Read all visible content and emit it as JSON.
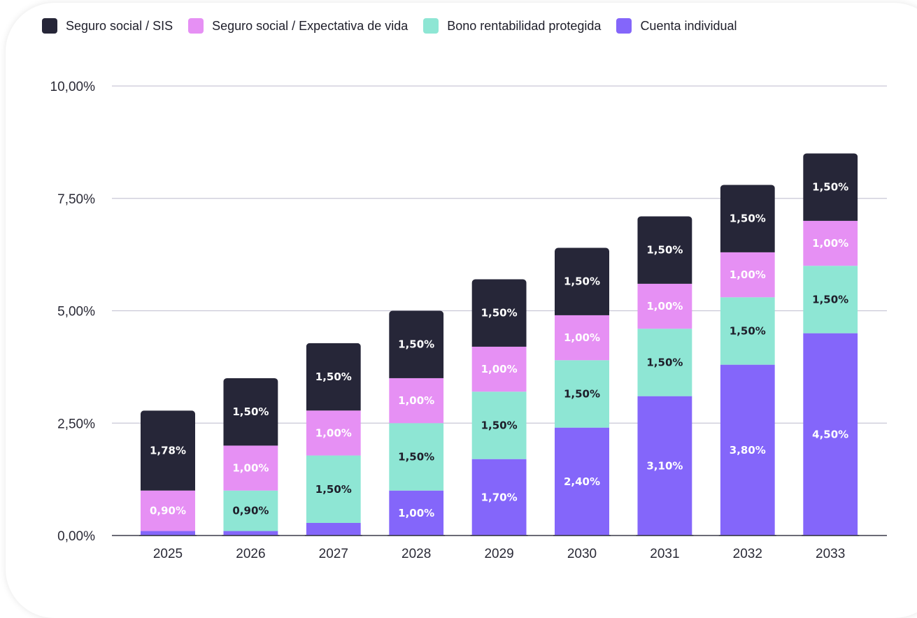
{
  "legend": {
    "items": [
      {
        "label": "Seguro social / SIS",
        "color": "#262638"
      },
      {
        "label": "Seguro social / Expectativa de vida",
        "color": "#e690f4"
      },
      {
        "label": "Bono rentabilidad protegida",
        "color": "#8ee6d4"
      },
      {
        "label": "Cuenta individual",
        "color": "#8466fa"
      }
    ]
  },
  "chart_data": {
    "type": "bar",
    "stacked": true,
    "legend_position": "top",
    "grid": true,
    "ylim": [
      0,
      10
    ],
    "yticks": [
      0,
      2.5,
      5,
      7.5,
      10
    ],
    "ytick_labels": [
      "0,00%",
      "2,50%",
      "5,00%",
      "7,50%",
      "10,00%"
    ],
    "categories": [
      "2025",
      "2026",
      "2027",
      "2028",
      "2029",
      "2030",
      "2031",
      "2032",
      "2033"
    ],
    "series": [
      {
        "name": "Cuenta individual",
        "color": "#8466fa",
        "values": [
          0.1,
          0.1,
          0.28,
          1.0,
          1.7,
          2.4,
          3.1,
          3.8,
          4.5
        ],
        "labels": [
          "",
          "",
          "",
          "1,00%",
          "1,70%",
          "2,40%",
          "3,10%",
          "3,80%",
          "4,50%"
        ],
        "label_color": "#ffffff"
      },
      {
        "name": "Bono rentabilidad protegida",
        "color": "#8ee6d4",
        "values": [
          0,
          0.9,
          1.5,
          1.5,
          1.5,
          1.5,
          1.5,
          1.5,
          1.5
        ],
        "labels": [
          "",
          "0,90%",
          "1,50%",
          "1,50%",
          "1,50%",
          "1,50%",
          "1,50%",
          "1,50%",
          "1,50%"
        ],
        "label_color": "#1e1e2a"
      },
      {
        "name": "Seguro social / Expectativa de vida",
        "color": "#e690f4",
        "values": [
          0.9,
          1.0,
          1.0,
          1.0,
          1.0,
          1.0,
          1.0,
          1.0,
          1.0
        ],
        "labels": [
          "0,90%",
          "1,00%",
          "1,00%",
          "1,00%",
          "1,00%",
          "1,00%",
          "1,00%",
          "1,00%",
          "1,00%"
        ],
        "label_color": "#ffffff"
      },
      {
        "name": "Seguro social / SIS",
        "color": "#262638",
        "values": [
          1.78,
          1.5,
          1.5,
          1.5,
          1.5,
          1.5,
          1.5,
          1.5,
          1.5
        ],
        "labels": [
          "1,78%",
          "1,50%",
          "1,50%",
          "1,50%",
          "1,50%",
          "1,50%",
          "1,50%",
          "1,50%",
          "1,50%"
        ],
        "label_color": "#ffffff"
      }
    ]
  }
}
